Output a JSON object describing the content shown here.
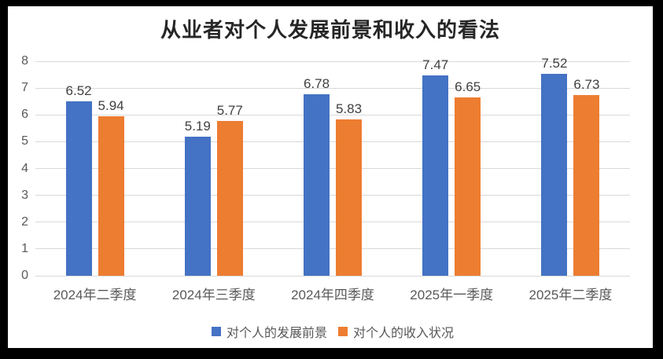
{
  "chart_data": {
    "type": "bar",
    "title": "从业者对个人发展前景和收入的看法",
    "categories": [
      "2024年二季度",
      "2024年三季度",
      "2024年四季度",
      "2025年一季度",
      "2025年二季度"
    ],
    "series": [
      {
        "name": "对个人的发展前景",
        "color": "#4472C4",
        "values": [
          6.52,
          5.19,
          6.78,
          7.47,
          7.52
        ]
      },
      {
        "name": "对个人的收入状况",
        "color": "#ED7D31",
        "values": [
          5.94,
          5.77,
          5.83,
          6.65,
          6.73
        ]
      }
    ],
    "y_axis": {
      "min": 0,
      "max": 8,
      "step": 1,
      "ticks": [
        0,
        1,
        2,
        3,
        4,
        5,
        6,
        7,
        8
      ]
    },
    "xlabel": "",
    "ylabel": "",
    "grid": true,
    "data_labels": true,
    "legend_position": "bottom"
  },
  "colors": {
    "series1": "#4472C4",
    "series2": "#ED7D31",
    "gridline": "#D9D9D9",
    "axis_label": "#595959",
    "data_label": "#404040",
    "title": "#262626",
    "frame": "#000000",
    "background": "#FFFFFF"
  }
}
